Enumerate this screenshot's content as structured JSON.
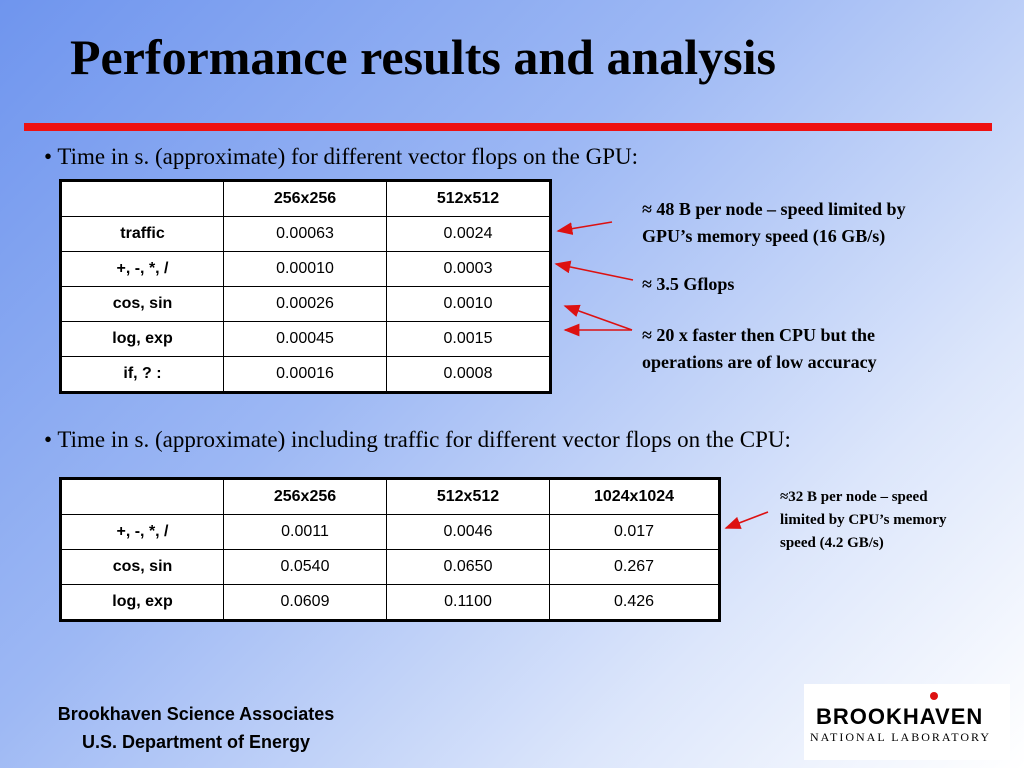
{
  "title": "Performance results and analysis",
  "bullet1": "• Time in s. (approximate) for different vector flops on the GPU:",
  "bullet2": "• Time in s. (approximate) including traffic for different vector flops on the CPU:",
  "gpu_table": {
    "headers": [
      "",
      "256x256",
      "512x512"
    ],
    "rows": [
      [
        "traffic",
        "0.00063",
        "0.0024"
      ],
      [
        "+, -, *, /",
        "0.00010",
        "0.0003"
      ],
      [
        "cos, sin",
        "0.00026",
        "0.0010"
      ],
      [
        "log, exp",
        "0.00045",
        "0.0015"
      ],
      [
        "if,  ? :",
        "0.00016",
        "0.0008"
      ]
    ]
  },
  "cpu_table": {
    "headers": [
      "",
      "256x256",
      "512x512",
      "1024x1024"
    ],
    "rows": [
      [
        "+, -, *, /",
        "0.0011",
        "0.0046",
        "0.017"
      ],
      [
        "cos, sin",
        "0.0540",
        "0.0650",
        "0.267"
      ],
      [
        "log, exp",
        "0.0609",
        "0.1100",
        "0.426"
      ]
    ]
  },
  "notes": {
    "gpu_traffic_line1": "≈ 48 B per node – speed limited by",
    "gpu_traffic_line2": "GPU’s memory speed (16 GB/s)",
    "gflops": "≈ 3.5 Gflops",
    "faster_line1": "≈ 20 x faster then CPU but the",
    "faster_line2": "operations are of low accuracy",
    "cpu_line1": "≈32 B per node – speed",
    "cpu_line2": "limited by CPU’s memory",
    "cpu_line3": "speed (4.2 GB/s)"
  },
  "footer": {
    "line1": "Brookhaven Science Associates",
    "line2": "U.S. Department of Energy"
  },
  "logo": {
    "word": "BROOKHAVEN",
    "sub": "NATIONAL LABORATORY"
  },
  "colors": {
    "accent_line": "#ee1111",
    "arrow": "#dd1111"
  }
}
